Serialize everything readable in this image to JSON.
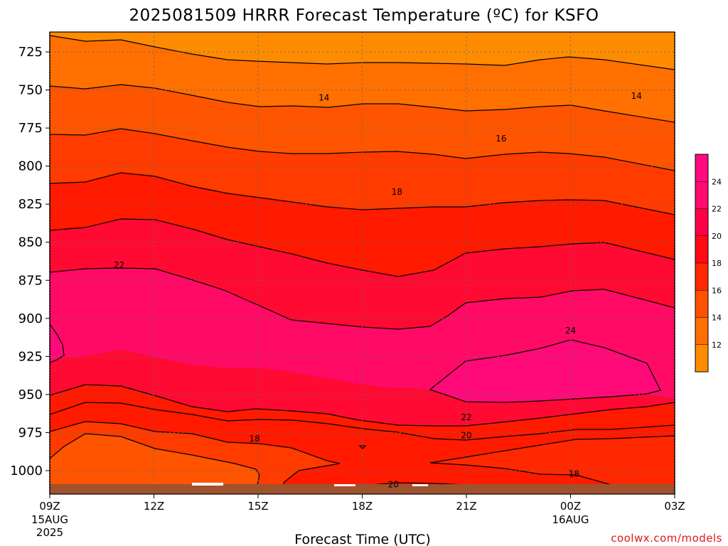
{
  "title": "2025081509 HRRR Forecast Temperature (ºC) for KSFO",
  "xlabel": "Forecast Time (UTC)",
  "credit": "coolwx.com/models",
  "chart_data": {
    "type": "contour",
    "title": "2025081509 HRRR Forecast Temperature (ºC) for KSFO",
    "xlabel": "Forecast Time (UTC)",
    "ylabel": "",
    "x_ticks": [
      {
        "label": "09Z",
        "sub": [
          "15AUG",
          "2025"
        ]
      },
      {
        "label": "12Z",
        "sub": []
      },
      {
        "label": "15Z",
        "sub": []
      },
      {
        "label": "18Z",
        "sub": []
      },
      {
        "label": "21Z",
        "sub": []
      },
      {
        "label": "00Z",
        "sub": [
          "16AUG"
        ]
      },
      {
        "label": "03Z",
        "sub": []
      }
    ],
    "y_ticks": [
      725,
      750,
      775,
      800,
      825,
      850,
      875,
      900,
      925,
      950,
      975,
      1000
    ],
    "ylim": [
      1014,
      712
    ],
    "y_axis": "pressure (hPa), inverted",
    "contour_levels": [
      12,
      14,
      16,
      18,
      20,
      22,
      24
    ],
    "contour_labels": [
      {
        "value": "14",
        "x_hour": 7.9,
        "p": 755
      },
      {
        "value": "14",
        "x_hour": 16.9,
        "p": 754
      },
      {
        "value": "16",
        "x_hour": 13.0,
        "p": 782
      },
      {
        "value": "18",
        "x_hour": 10.0,
        "p": 817
      },
      {
        "value": "22",
        "x_hour": 2.0,
        "p": 865
      },
      {
        "value": "24",
        "x_hour": 15.0,
        "p": 908
      },
      {
        "value": "22",
        "x_hour": 12.0,
        "p": 965
      },
      {
        "value": "20",
        "x_hour": 12.0,
        "p": 977
      },
      {
        "value": "18",
        "x_hour": 5.9,
        "p": 979
      },
      {
        "value": "18",
        "x_hour": 15.1,
        "p": 1002
      },
      {
        "value": "20",
        "x_hour": 9.9,
        "p": 1009
      }
    ],
    "colorbar": {
      "ticks": [
        "12",
        "14",
        "16",
        "18",
        "20",
        "22",
        "24"
      ],
      "colors": [
        "#ff8c00",
        "#ff6e00",
        "#ff5000",
        "#ff2800",
        "#ff0a14",
        "#ff0046",
        "#ff0a6e",
        "#ff0a80"
      ]
    },
    "band_colors": {
      "lt12": "#ff8c00",
      "12-14": "#ff7000",
      "14-16": "#ff5500",
      "16-18": "#ff3b00",
      "18-20": "#ff1a00",
      "20-22": "#ff0a32",
      "22-24": "#ff0a64",
      "gt24": "#ff0a78"
    },
    "ground_color": "#a0522d",
    "grid": true
  }
}
